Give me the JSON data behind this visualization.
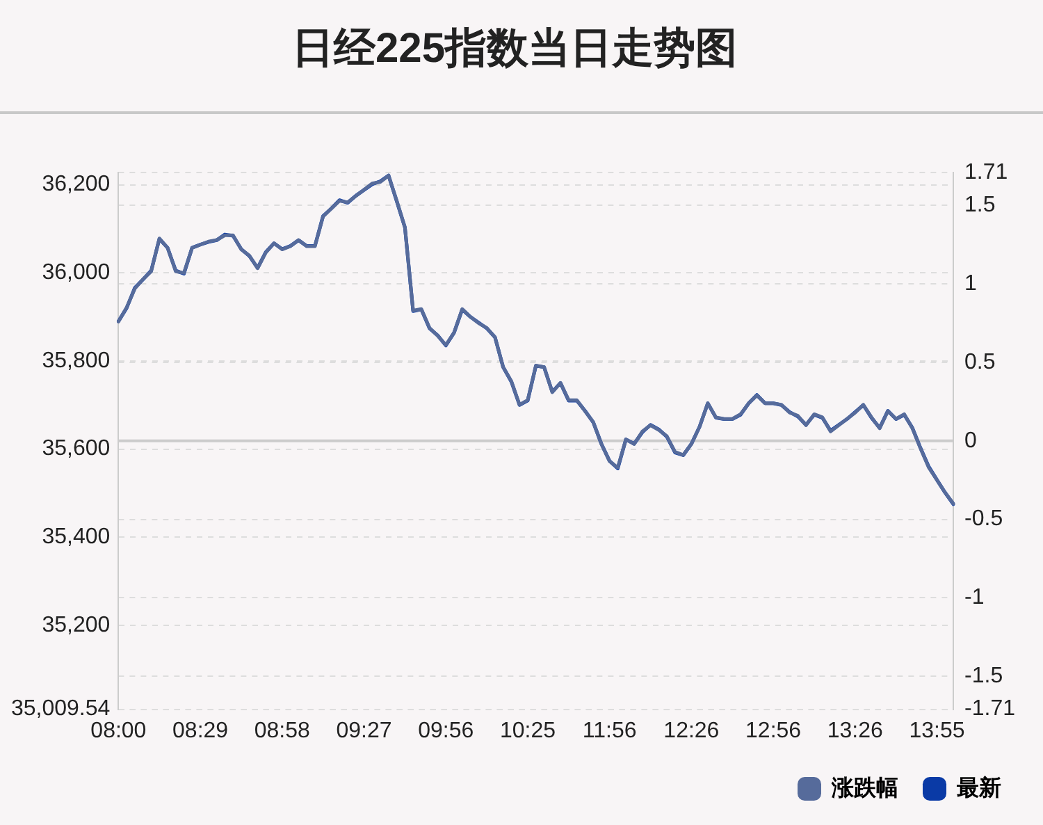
{
  "chart_data": {
    "type": "line",
    "title": "日经225指数当日走势图",
    "categories": [
      "08:00",
      null,
      null,
      null,
      null,
      null,
      null,
      null,
      null,
      null,
      "08:29",
      null,
      null,
      null,
      null,
      null,
      null,
      null,
      null,
      null,
      "08:58",
      null,
      null,
      null,
      null,
      null,
      null,
      null,
      null,
      null,
      "09:27",
      null,
      null,
      null,
      null,
      null,
      null,
      null,
      null,
      null,
      "09:56",
      null,
      null,
      null,
      null,
      null,
      null,
      null,
      null,
      null,
      "10:25",
      null,
      null,
      null,
      null,
      null,
      null,
      null,
      null,
      null,
      "11:56",
      null,
      null,
      null,
      null,
      null,
      null,
      null,
      null,
      null,
      "12:26",
      null,
      null,
      null,
      null,
      null,
      null,
      null,
      null,
      null,
      "12:56",
      null,
      null,
      null,
      null,
      null,
      null,
      null,
      null,
      null,
      "13:26",
      null,
      null,
      null,
      null,
      null,
      null,
      null,
      null,
      null,
      "13:55",
      null,
      null
    ],
    "series": [
      {
        "name": "最新",
        "color": "#0a3aa6",
        "values": [
          35890,
          35920,
          35966,
          35985,
          36005,
          36077,
          36057,
          36005,
          35998,
          36057,
          36064,
          36070,
          36074,
          36087,
          36084,
          36054,
          36038,
          36011,
          36047,
          36067,
          36054,
          36061,
          36074,
          36061,
          36061,
          36129,
          36146,
          36165,
          36159,
          36175,
          36188,
          36201,
          36208,
          36221,
          36162,
          36103,
          35913,
          35917,
          35874,
          35858,
          35835,
          35864,
          35917,
          35900,
          35887,
          35874,
          35854,
          35786,
          35753,
          35700,
          35710,
          35789,
          35786,
          35730,
          35750,
          35710,
          35710,
          35687,
          35661,
          35612,
          35573,
          35556,
          35622,
          35612,
          35638,
          35655,
          35645,
          35628,
          35592,
          35586,
          35612,
          35651,
          35704,
          35671,
          35668,
          35668,
          35678,
          35704,
          35723,
          35704,
          35704,
          35700,
          35684,
          35674,
          35655,
          35678,
          35671,
          35642,
          35655,
          35668,
          35684,
          35700,
          35671,
          35648,
          35687,
          35668,
          35678,
          35648,
          35602,
          35560,
          35530,
          35501,
          35475
        ]
      },
      {
        "name": "涨跌幅",
        "color": "#566b9b",
        "axis": "y2",
        "values": [
          0.76,
          0.85,
          0.97,
          1.03,
          1.08,
          1.29,
          1.23,
          1.08,
          1.07,
          1.23,
          1.25,
          1.27,
          1.28,
          1.31,
          1.31,
          1.22,
          1.18,
          1.1,
          1.2,
          1.26,
          1.22,
          1.24,
          1.28,
          1.24,
          1.24,
          1.43,
          1.48,
          1.53,
          1.52,
          1.56,
          1.6,
          1.64,
          1.65,
          1.69,
          1.53,
          1.36,
          0.83,
          0.84,
          0.72,
          0.67,
          0.61,
          0.69,
          0.84,
          0.79,
          0.75,
          0.72,
          0.66,
          0.47,
          0.38,
          0.23,
          0.26,
          0.48,
          0.47,
          0.31,
          0.37,
          0.26,
          0.26,
          0.19,
          0.12,
          -0.02,
          -0.13,
          -0.17,
          0.01,
          -0.02,
          0.06,
          0.1,
          0.07,
          0.03,
          -0.07,
          -0.09,
          -0.02,
          0.09,
          0.24,
          0.15,
          0.14,
          0.14,
          0.17,
          0.24,
          0.29,
          0.24,
          0.24,
          0.23,
          0.18,
          0.16,
          0.1,
          0.17,
          0.15,
          0.06,
          0.1,
          0.14,
          0.18,
          0.23,
          0.15,
          0.08,
          0.19,
          0.14,
          0.17,
          0.08,
          -0.05,
          -0.17,
          -0.25,
          -0.33,
          -0.4
        ]
      }
    ],
    "ylim": [
      35009.54,
      36227.7
    ],
    "yticks": [
      {
        "value": 35009.54,
        "label": "35,009.54"
      },
      {
        "value": 35200,
        "label": "35,200"
      },
      {
        "value": 35400,
        "label": "35,400"
      },
      {
        "value": 35600,
        "label": "35,600"
      },
      {
        "value": 35800,
        "label": "35,800"
      },
      {
        "value": 36000,
        "label": "36,000"
      },
      {
        "value": 36200,
        "label": "36,200"
      }
    ],
    "y2lim": [
      -1.71,
      1.71
    ],
    "y2ticks": [
      -1.71,
      -1.5,
      -1,
      -0.5,
      0,
      0.5,
      1,
      1.5,
      1.71
    ],
    "ref_lines": [
      {
        "axis": "y2",
        "value": 0,
        "color": "#cccccc"
      }
    ],
    "grid": "y",
    "legend": "bottom right",
    "marker": "none",
    "line_style": "solid"
  }
}
